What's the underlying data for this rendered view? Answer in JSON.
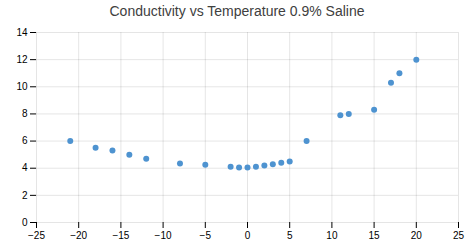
{
  "chart_data": {
    "type": "scatter",
    "title": "Conductivity vs Temperature 0.9% Saline",
    "x": [
      -21,
      -18,
      -16,
      -14,
      -12,
      -8,
      -5,
      -2,
      -1,
      0,
      1,
      2,
      3,
      4,
      5,
      7,
      11,
      12,
      15,
      17,
      18,
      20
    ],
    "values": [
      6.0,
      5.5,
      5.3,
      5.0,
      4.7,
      4.35,
      4.25,
      4.1,
      4.05,
      4.05,
      4.1,
      4.2,
      4.3,
      4.4,
      4.5,
      6.0,
      7.9,
      8.0,
      8.3,
      10.3,
      11.0,
      12.0
    ],
    "color": "#4E93D0",
    "xlim": [
      -25,
      25
    ],
    "ylim": [
      0,
      14
    ],
    "xticks": [
      -25,
      -20,
      -15,
      -10,
      -5,
      0,
      5,
      10,
      15,
      20,
      25
    ],
    "yticks": [
      0,
      2,
      4,
      6,
      8,
      10,
      12,
      14
    ],
    "grid": true
  }
}
